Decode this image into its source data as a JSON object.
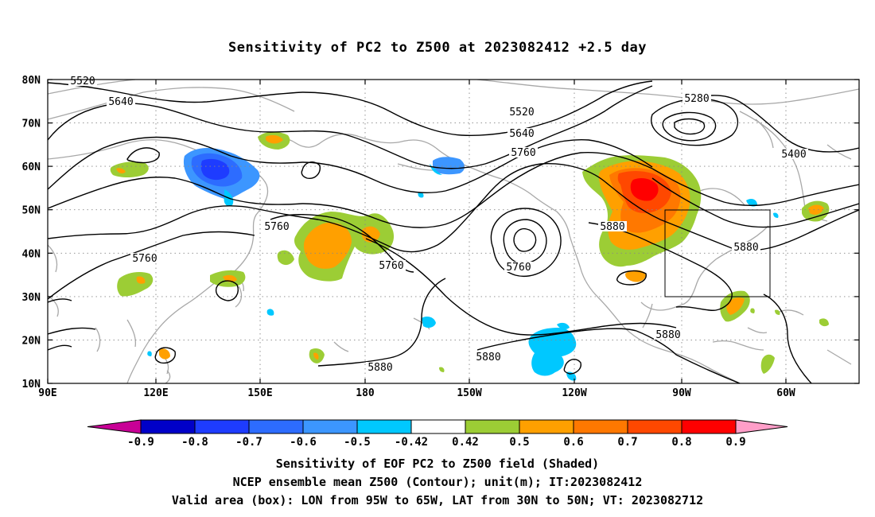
{
  "title": "Sensitivity of PC2 to Z500 at 2023082412 +2.5 day",
  "footer": {
    "line1": "Sensitivity of EOF PC2 to Z500 field (Shaded)",
    "line2": "NCEP ensemble mean Z500 (Contour); unit(m); IT:2023082412",
    "line3": "Valid area (box): LON from 95W to 65W, LAT from 30N to 50N; VT: 2023082712"
  },
  "axes": {
    "lat_labels": [
      "80N",
      "70N",
      "60N",
      "50N",
      "40N",
      "30N",
      "20N",
      "10N"
    ],
    "lon_labels": [
      "90E",
      "120E",
      "150E",
      "180",
      "150W",
      "120W",
      "90W",
      "60W"
    ],
    "grid": true
  },
  "contour_labels": [
    "5520",
    "5640",
    "5520",
    "5640",
    "5760",
    "5280",
    "5400",
    "5880",
    "5760",
    "5760",
    "5760",
    "5880",
    "5760",
    "5880",
    "5880",
    "5880"
  ],
  "colorbar": {
    "labels": [
      "-0.9",
      "-0.8",
      "-0.7",
      "-0.6",
      "-0.5",
      "-0.42",
      "0.42",
      "0.5",
      "0.6",
      "0.7",
      "0.8",
      "0.9"
    ],
    "colors": [
      "#0000c8",
      "#1e3cff",
      "#2d6cff",
      "#3c96ff",
      "#00c8ff",
      "#ffffff",
      "#9ccd35",
      "#ffa000",
      "#ff7800",
      "#ff4800",
      "#ff0000"
    ],
    "under_color": "#c80096",
    "over_color": "#ff9ec8"
  },
  "valid_box": {
    "lon_west": "95W",
    "lon_east": "65W",
    "lat_south": "30N",
    "lat_north": "50N"
  }
}
